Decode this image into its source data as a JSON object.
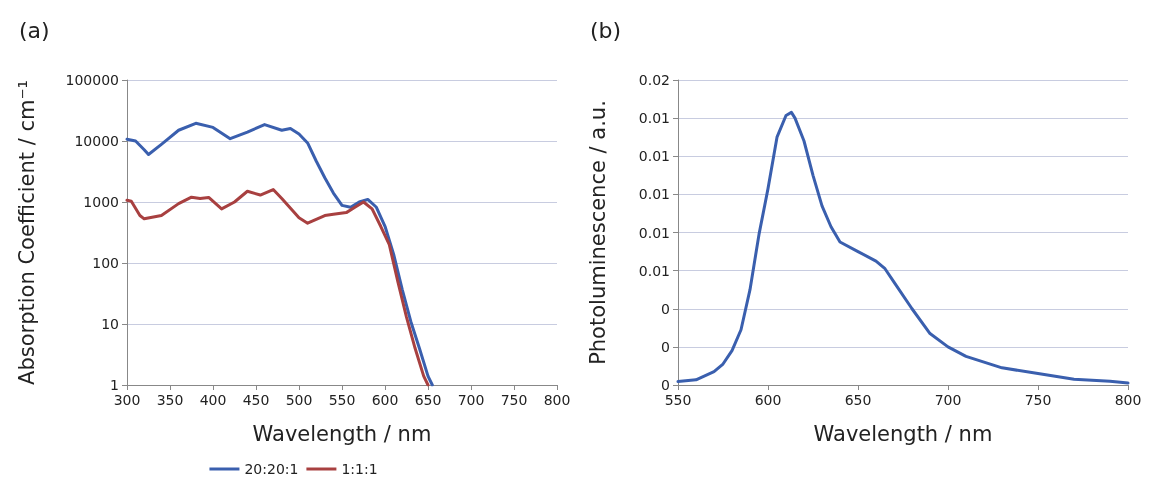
{
  "chart_data": [
    {
      "type": "line",
      "annotations": [
        "(a)"
      ],
      "xlabel": "Wavelength / nm",
      "ylabel": "Absorption Coefficient / cm⁻¹",
      "log": "y",
      "xlim": [
        300,
        800
      ],
      "xticks": [
        300,
        350,
        400,
        450,
        500,
        550,
        600,
        650,
        700,
        750,
        800
      ],
      "ylim": [
        1,
        100000
      ],
      "yticks": [
        1,
        10,
        100,
        1000,
        10000,
        100000
      ],
      "grid": "y",
      "legend": "bottom",
      "marker": "none",
      "line_style": "solid",
      "series": [
        {
          "name": "20:20:1",
          "color": "#3a5fae",
          "x": [
            300,
            310,
            320,
            325,
            340,
            360,
            380,
            400,
            420,
            440,
            460,
            480,
            490,
            500,
            510,
            520,
            530,
            540,
            550,
            560,
            570,
            580,
            590,
            600,
            610,
            620,
            630,
            640,
            650,
            655
          ],
          "values": [
            10700,
            10000,
            7200,
            6000,
            8800,
            15000,
            19500,
            16700,
            10900,
            14000,
            18600,
            15000,
            16000,
            13000,
            9300,
            4700,
            2500,
            1400,
            880,
            820,
            1000,
            1100,
            820,
            400,
            140,
            37,
            11,
            4,
            1.4,
            1
          ]
        },
        {
          "name": "1:1:1",
          "color": "#a84040",
          "x": [
            300,
            305,
            315,
            320,
            340,
            360,
            375,
            385,
            395,
            410,
            425,
            440,
            455,
            470,
            480,
            500,
            510,
            530,
            540,
            555,
            565,
            575,
            585,
            595,
            605,
            615,
            625,
            635,
            645,
            650
          ],
          "values": [
            1070,
            1030,
            600,
            530,
            600,
            940,
            1200,
            1140,
            1190,
            770,
            1000,
            1500,
            1300,
            1600,
            1140,
            550,
            450,
            600,
            630,
            670,
            820,
            1000,
            770,
            400,
            200,
            49,
            13,
            4,
            1.4,
            1
          ]
        }
      ]
    },
    {
      "type": "line",
      "annotations": [
        "(b)"
      ],
      "xlabel": "Wavelength / nm",
      "ylabel": "Photoluminescence / a.u.",
      "xlim": [
        550,
        800
      ],
      "xticks": [
        550,
        600,
        650,
        700,
        750,
        800
      ],
      "ylim": [
        0,
        0.016
      ],
      "yticks": [
        {
          "value": 0,
          "label": "0"
        },
        {
          "value": 0.002,
          "label": "0"
        },
        {
          "value": 0.004,
          "label": "0"
        },
        {
          "value": 0.006,
          "label": "0.01"
        },
        {
          "value": 0.008,
          "label": "0.01"
        },
        {
          "value": 0.01,
          "label": "0.01"
        },
        {
          "value": 0.012,
          "label": "0.01"
        },
        {
          "value": 0.014,
          "label": "0.01"
        },
        {
          "value": 0.016,
          "label": "0.02"
        }
      ],
      "grid": "y",
      "marker": "none",
      "line_style": "solid",
      "series": [
        {
          "color": "#3a5fae",
          "x": [
            550,
            560,
            570,
            575,
            580,
            585,
            590,
            595,
            600,
            605,
            610,
            613,
            615,
            620,
            625,
            630,
            635,
            640,
            650,
            660,
            665,
            670,
            680,
            690,
            700,
            710,
            720,
            730,
            750,
            770,
            790,
            800
          ],
          "values": [
            0.00018,
            0.00027,
            0.0007,
            0.0011,
            0.0018,
            0.0029,
            0.005,
            0.0079,
            0.0103,
            0.013,
            0.01414,
            0.0143,
            0.014,
            0.0128,
            0.011,
            0.0094,
            0.0083,
            0.0075,
            0.007,
            0.0065,
            0.0061,
            0.0054,
            0.004,
            0.0027,
            0.002,
            0.0015,
            0.0012,
            0.0009,
            0.0006,
            0.0003,
            0.0002,
            0.0001
          ]
        }
      ]
    }
  ]
}
